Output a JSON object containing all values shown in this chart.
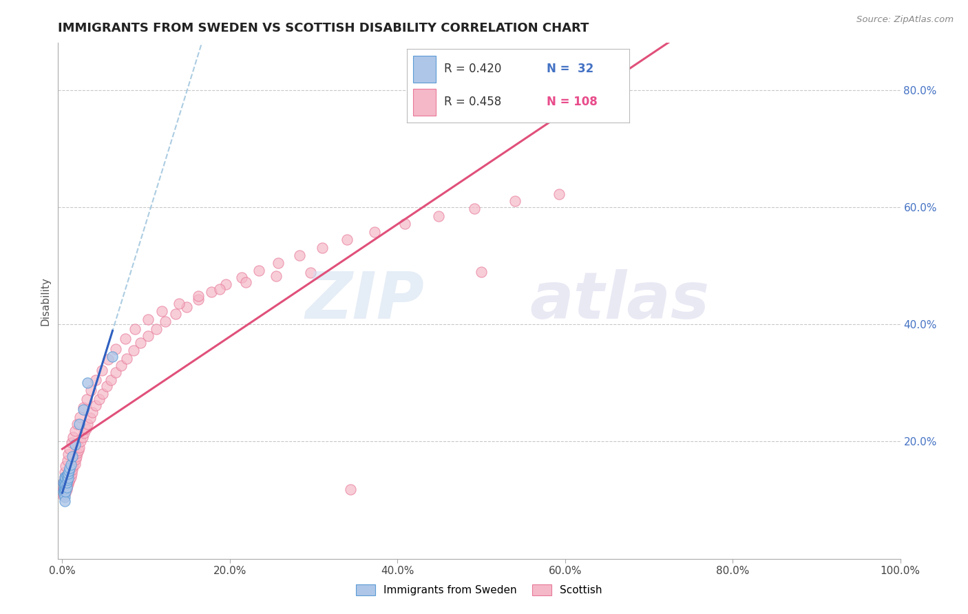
{
  "title": "IMMIGRANTS FROM SWEDEN VS SCOTTISH DISABILITY CORRELATION CHART",
  "source": "Source: ZipAtlas.com",
  "ylabel": "Disability",
  "xlim": [
    0,
    1.0
  ],
  "ylim": [
    0.0,
    0.88
  ],
  "xticks": [
    0.0,
    0.2,
    0.4,
    0.6,
    0.8,
    1.0
  ],
  "xticklabels": [
    "0.0%",
    "20.0%",
    "40.0%",
    "60.0%",
    "80.0%",
    "100.0%"
  ],
  "yticks_right": [
    0.2,
    0.4,
    0.6,
    0.8
  ],
  "yticklabels_right": [
    "20.0%",
    "40.0%",
    "60.0%",
    "80.0%"
  ],
  "color_sweden_fill": "#aec6e8",
  "color_sweden_edge": "#5b9bd5",
  "color_scottish_fill": "#f5b8c8",
  "color_scottish_edge": "#e87898",
  "color_line_sweden": "#3060c0",
  "color_line_scottish": "#e0507a",
  "color_line_dashed": "#90bcd8",
  "color_text_blue": "#4472c4",
  "color_text_pink": "#e84c8b",
  "background_color": "#ffffff",
  "grid_color": "#c8c8c8",
  "watermark_zip": "ZIP",
  "watermark_atlas": "atlas",
  "legend_r1": "R = 0.420",
  "legend_n1": "N =  32",
  "legend_r2": "R = 0.458",
  "legend_n2": "N = 108",
  "sweden_x": [
    0.001,
    0.001,
    0.002,
    0.002,
    0.002,
    0.002,
    0.003,
    0.003,
    0.003,
    0.003,
    0.003,
    0.003,
    0.004,
    0.004,
    0.004,
    0.004,
    0.005,
    0.005,
    0.005,
    0.006,
    0.006,
    0.007,
    0.007,
    0.008,
    0.009,
    0.01,
    0.012,
    0.015,
    0.02,
    0.025,
    0.03,
    0.06
  ],
  "sweden_y": [
    0.13,
    0.115,
    0.118,
    0.122,
    0.128,
    0.11,
    0.118,
    0.125,
    0.132,
    0.14,
    0.105,
    0.098,
    0.12,
    0.128,
    0.138,
    0.115,
    0.122,
    0.13,
    0.142,
    0.135,
    0.142,
    0.138,
    0.145,
    0.15,
    0.155,
    0.16,
    0.175,
    0.195,
    0.23,
    0.255,
    0.3,
    0.345
  ],
  "scottish_x": [
    0.001,
    0.001,
    0.001,
    0.001,
    0.002,
    0.002,
    0.002,
    0.002,
    0.002,
    0.003,
    0.003,
    0.003,
    0.003,
    0.003,
    0.004,
    0.004,
    0.004,
    0.004,
    0.005,
    0.005,
    0.005,
    0.005,
    0.006,
    0.006,
    0.006,
    0.007,
    0.007,
    0.008,
    0.008,
    0.009,
    0.009,
    0.01,
    0.01,
    0.011,
    0.012,
    0.013,
    0.014,
    0.015,
    0.016,
    0.017,
    0.018,
    0.019,
    0.02,
    0.022,
    0.024,
    0.026,
    0.028,
    0.03,
    0.033,
    0.036,
    0.04,
    0.044,
    0.048,
    0.053,
    0.058,
    0.064,
    0.07,
    0.077,
    0.085,
    0.093,
    0.102,
    0.112,
    0.123,
    0.135,
    0.148,
    0.162,
    0.178,
    0.195,
    0.214,
    0.235,
    0.258,
    0.283,
    0.31,
    0.34,
    0.373,
    0.409,
    0.449,
    0.492,
    0.54,
    0.593,
    0.5,
    0.003,
    0.004,
    0.006,
    0.007,
    0.009,
    0.011,
    0.013,
    0.015,
    0.018,
    0.021,
    0.025,
    0.029,
    0.034,
    0.04,
    0.047,
    0.055,
    0.064,
    0.075,
    0.087,
    0.102,
    0.119,
    0.139,
    0.162,
    0.188,
    0.219,
    0.255,
    0.296,
    0.344
  ],
  "scottish_y": [
    0.12,
    0.13,
    0.118,
    0.108,
    0.125,
    0.132,
    0.118,
    0.112,
    0.128,
    0.118,
    0.125,
    0.132,
    0.14,
    0.115,
    0.12,
    0.128,
    0.135,
    0.112,
    0.122,
    0.13,
    0.14,
    0.118,
    0.125,
    0.135,
    0.145,
    0.128,
    0.138,
    0.132,
    0.142,
    0.135,
    0.145,
    0.14,
    0.15,
    0.145,
    0.152,
    0.158,
    0.165,
    0.162,
    0.17,
    0.175,
    0.18,
    0.185,
    0.19,
    0.2,
    0.208,
    0.215,
    0.222,
    0.23,
    0.24,
    0.25,
    0.262,
    0.272,
    0.282,
    0.295,
    0.305,
    0.318,
    0.33,
    0.342,
    0.355,
    0.368,
    0.38,
    0.392,
    0.405,
    0.418,
    0.43,
    0.442,
    0.455,
    0.468,
    0.48,
    0.492,
    0.505,
    0.518,
    0.53,
    0.545,
    0.558,
    0.572,
    0.585,
    0.598,
    0.61,
    0.622,
    0.49,
    0.148,
    0.158,
    0.168,
    0.178,
    0.188,
    0.198,
    0.208,
    0.218,
    0.23,
    0.242,
    0.258,
    0.272,
    0.288,
    0.305,
    0.322,
    0.34,
    0.358,
    0.375,
    0.392,
    0.408,
    0.422,
    0.435,
    0.448,
    0.46,
    0.472,
    0.482,
    0.488,
    0.118
  ]
}
